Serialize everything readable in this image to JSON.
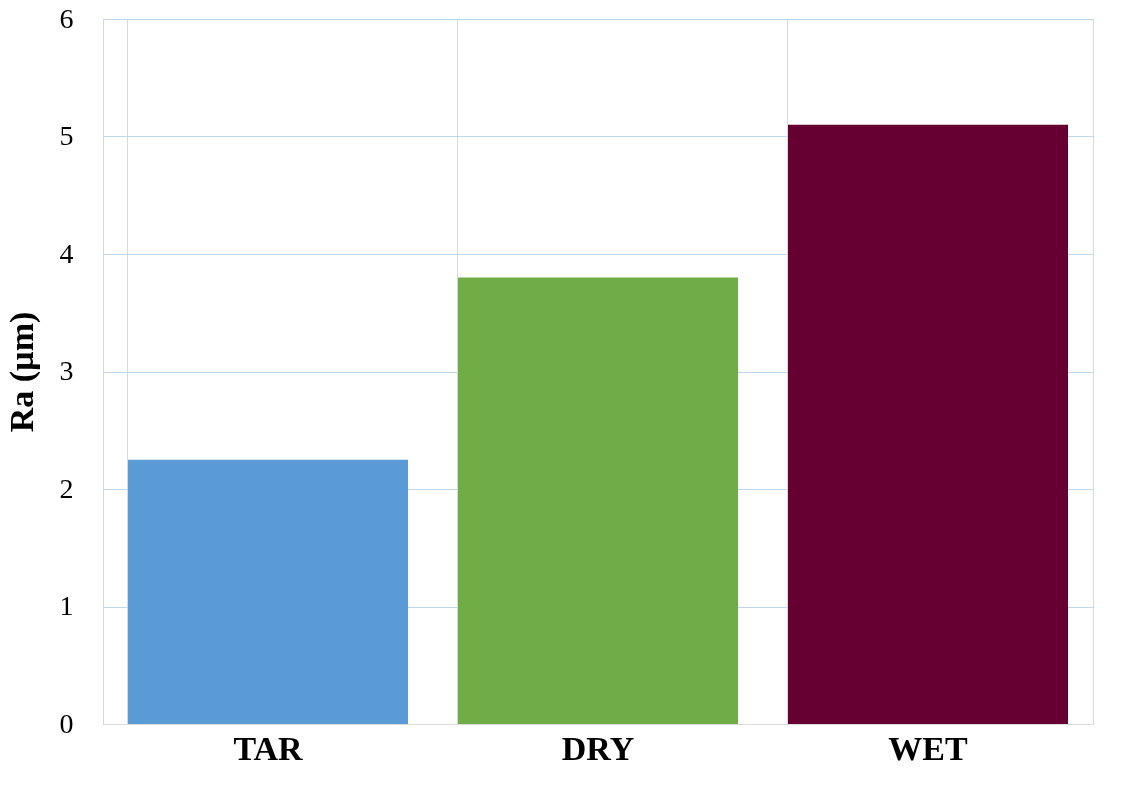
{
  "chart_data": {
    "type": "bar",
    "ylabel": "Ra (µm)",
    "categories": [
      "TAR",
      "DRY",
      "WET"
    ],
    "values": [
      2.25,
      3.8,
      5.1
    ],
    "colors": [
      "#5b9bd5",
      "#70ad47",
      "#660033"
    ],
    "ylim": [
      0,
      6
    ],
    "yticks": [
      0,
      1,
      2,
      3,
      4,
      5,
      6
    ],
    "grid": true
  }
}
